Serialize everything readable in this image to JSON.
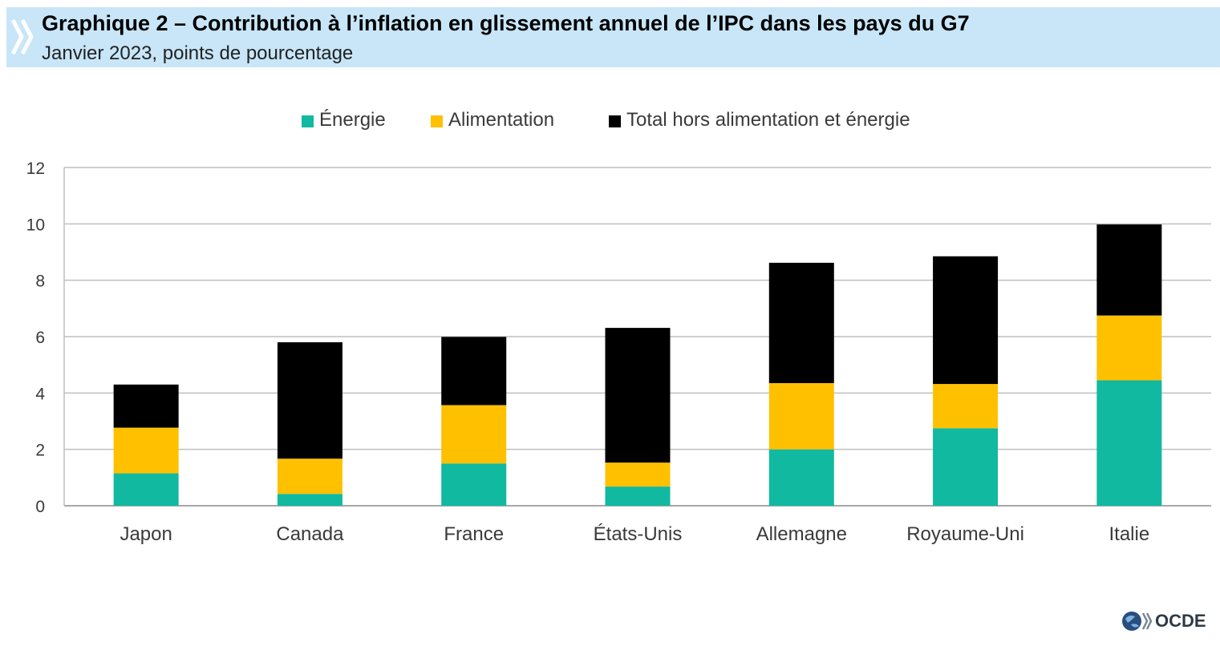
{
  "header": {
    "title": "Graphique 2 – Contribution à l’inflation en glissement annuel de l’IPC dans les pays du G7",
    "subtitle": "Janvier 2023, points de pourcentage"
  },
  "logo": {
    "text": "OCDE",
    "icon": "oecd-globe-icon"
  },
  "colors": {
    "energie": "#10b9a0",
    "alimentation": "#ffc000",
    "total": "#000000",
    "header_bg": "#c8e6f8",
    "grid": "#bfbfbf"
  },
  "chart_data": {
    "type": "bar",
    "stacked": true,
    "categories": [
      "Japon",
      "Canada",
      "France",
      "États-Unis",
      "Allemagne",
      "Royaume-Uni",
      "Italie"
    ],
    "series": [
      {
        "name": "Énergie",
        "color": "#10b9a0",
        "values": [
          1.15,
          0.42,
          1.5,
          0.68,
          2.0,
          2.75,
          4.45
        ]
      },
      {
        "name": "Alimentation",
        "color": "#ffc000",
        "values": [
          1.62,
          1.25,
          2.07,
          0.85,
          2.35,
          1.57,
          2.3
        ]
      },
      {
        "name": "Total hors alimentation et énergie",
        "color": "#000000",
        "values": [
          1.53,
          4.13,
          2.42,
          4.78,
          4.27,
          4.53,
          3.23
        ]
      }
    ],
    "yticks": [
      "0",
      "2",
      "4",
      "6",
      "8",
      "10",
      "12"
    ],
    "ylim": [
      0,
      12
    ],
    "grid": true,
    "legend_position": "top"
  }
}
